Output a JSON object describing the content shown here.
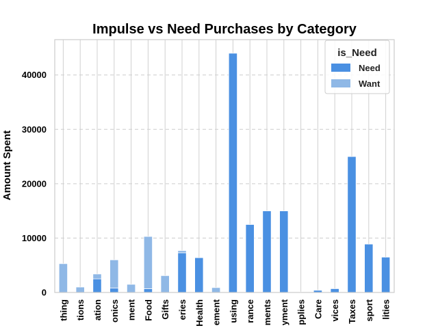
{
  "chart_data": {
    "type": "bar",
    "stacked": true,
    "title": "Impulse vs Need Purchases by Category",
    "xlabel": "",
    "ylabel": "Amount Spent",
    "ylim": [
      0,
      46500
    ],
    "yticks": [
      0,
      10000,
      20000,
      30000,
      40000
    ],
    "grid": true,
    "legend": {
      "title": "is_Need",
      "placement": "top-right"
    },
    "categories": [
      "thing",
      "tions",
      "ation",
      "onics",
      "ment",
      "Food",
      "Gifts",
      "eries",
      "Health",
      "ement",
      "using",
      "rance",
      "ments",
      "yment",
      "pplies",
      "Care",
      "vices",
      "Taxes",
      "sport",
      "lities"
    ],
    "series": [
      {
        "name": "Need",
        "color": "#4a90e2",
        "values": [
          0,
          0,
          2500,
          800,
          0,
          700,
          0,
          7300,
          6400,
          0,
          44000,
          12500,
          15000,
          15000,
          0,
          400,
          700,
          25000,
          8900,
          6500
        ]
      },
      {
        "name": "Want",
        "color": "#8fb8e6",
        "values": [
          5300,
          1000,
          900,
          5200,
          1500,
          9600,
          3100,
          400,
          0,
          900,
          0,
          0,
          0,
          0,
          100,
          0,
          0,
          0,
          0,
          0
        ]
      }
    ]
  }
}
